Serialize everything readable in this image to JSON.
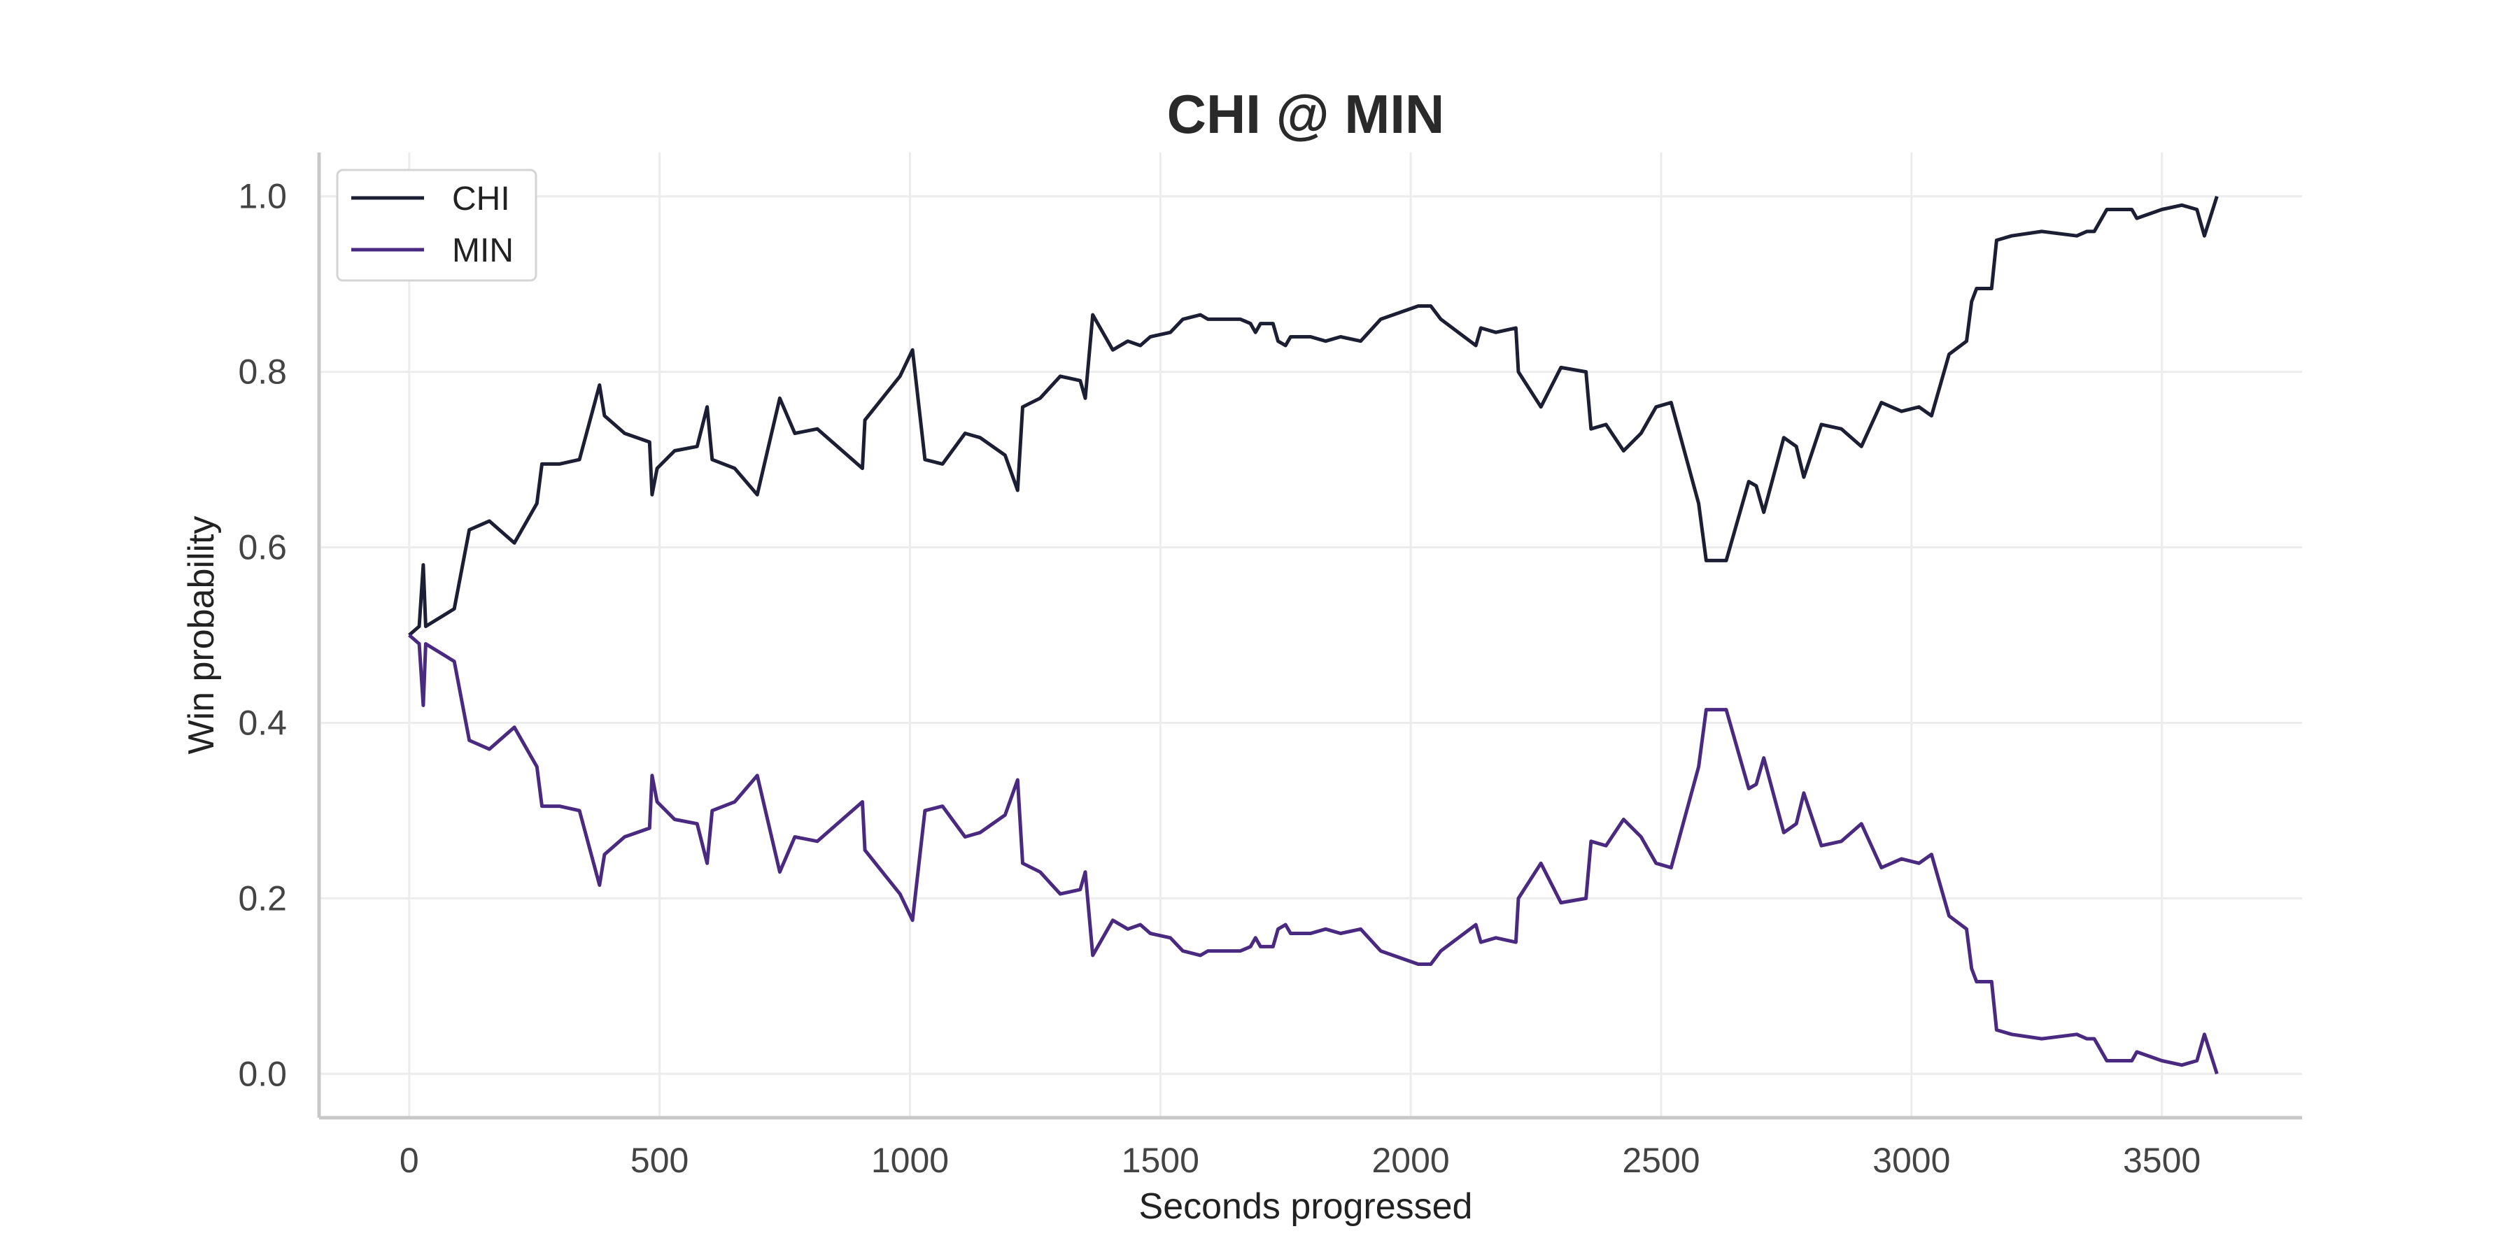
{
  "chart_data": {
    "type": "line",
    "title": "CHI @ MIN",
    "xlabel": "Seconds progressed",
    "ylabel": "Win probability",
    "xlim": [
      -180,
      3780
    ],
    "ylim": [
      -0.05,
      1.05
    ],
    "xticks": [
      0,
      500,
      1000,
      1500,
      2000,
      2500,
      3000,
      3500
    ],
    "xtick_labels": [
      "0",
      "500",
      "1000",
      "1500",
      "2000",
      "2500",
      "3000",
      "3500"
    ],
    "yticks": [
      0.0,
      0.2,
      0.4,
      0.6,
      0.8,
      1.0
    ],
    "ytick_labels": [
      "0.0",
      "0.2",
      "0.4",
      "0.6",
      "0.8",
      "1.0"
    ],
    "grid": true,
    "legend": "top-left",
    "series": [
      {
        "name": "CHI",
        "color": "#1c1f33",
        "points": [
          [
            0,
            0.5
          ],
          [
            20,
            0.51
          ],
          [
            28,
            0.58
          ],
          [
            33,
            0.51
          ],
          [
            90,
            0.53
          ],
          [
            120,
            0.62
          ],
          [
            160,
            0.63
          ],
          [
            210,
            0.605
          ],
          [
            255,
            0.65
          ],
          [
            265,
            0.695
          ],
          [
            300,
            0.695
          ],
          [
            340,
            0.7
          ],
          [
            380,
            0.785
          ],
          [
            390,
            0.75
          ],
          [
            430,
            0.73
          ],
          [
            480,
            0.72
          ],
          [
            485,
            0.66
          ],
          [
            495,
            0.69
          ],
          [
            530,
            0.71
          ],
          [
            575,
            0.715
          ],
          [
            595,
            0.76
          ],
          [
            605,
            0.7
          ],
          [
            650,
            0.69
          ],
          [
            695,
            0.66
          ],
          [
            740,
            0.77
          ],
          [
            770,
            0.73
          ],
          [
            815,
            0.735
          ],
          [
            905,
            0.69
          ],
          [
            910,
            0.745
          ],
          [
            980,
            0.795
          ],
          [
            1005,
            0.825
          ],
          [
            1030,
            0.7
          ],
          [
            1065,
            0.695
          ],
          [
            1110,
            0.73
          ],
          [
            1140,
            0.725
          ],
          [
            1190,
            0.705
          ],
          [
            1215,
            0.665
          ],
          [
            1225,
            0.76
          ],
          [
            1260,
            0.77
          ],
          [
            1300,
            0.795
          ],
          [
            1340,
            0.79
          ],
          [
            1350,
            0.77
          ],
          [
            1365,
            0.865
          ],
          [
            1405,
            0.825
          ],
          [
            1435,
            0.835
          ],
          [
            1460,
            0.83
          ],
          [
            1480,
            0.84
          ],
          [
            1520,
            0.845
          ],
          [
            1545,
            0.86
          ],
          [
            1580,
            0.865
          ],
          [
            1595,
            0.86
          ],
          [
            1660,
            0.86
          ],
          [
            1680,
            0.855
          ],
          [
            1690,
            0.845
          ],
          [
            1700,
            0.855
          ],
          [
            1725,
            0.855
          ],
          [
            1735,
            0.835
          ],
          [
            1750,
            0.83
          ],
          [
            1760,
            0.84
          ],
          [
            1800,
            0.84
          ],
          [
            1830,
            0.835
          ],
          [
            1860,
            0.84
          ],
          [
            1900,
            0.835
          ],
          [
            1940,
            0.86
          ],
          [
            2015,
            0.875
          ],
          [
            2040,
            0.875
          ],
          [
            2060,
            0.86
          ],
          [
            2130,
            0.83
          ],
          [
            2140,
            0.85
          ],
          [
            2170,
            0.845
          ],
          [
            2210,
            0.85
          ],
          [
            2215,
            0.8
          ],
          [
            2260,
            0.76
          ],
          [
            2300,
            0.805
          ],
          [
            2350,
            0.8
          ],
          [
            2360,
            0.735
          ],
          [
            2390,
            0.74
          ],
          [
            2425,
            0.71
          ],
          [
            2460,
            0.73
          ],
          [
            2490,
            0.76
          ],
          [
            2520,
            0.765
          ],
          [
            2575,
            0.65
          ],
          [
            2590,
            0.585
          ],
          [
            2630,
            0.585
          ],
          [
            2675,
            0.675
          ],
          [
            2690,
            0.67
          ],
          [
            2705,
            0.64
          ],
          [
            2745,
            0.725
          ],
          [
            2770,
            0.715
          ],
          [
            2785,
            0.68
          ],
          [
            2820,
            0.74
          ],
          [
            2860,
            0.735
          ],
          [
            2900,
            0.715
          ],
          [
            2940,
            0.765
          ],
          [
            2980,
            0.755
          ],
          [
            3015,
            0.76
          ],
          [
            3040,
            0.75
          ],
          [
            3075,
            0.82
          ],
          [
            3110,
            0.835
          ],
          [
            3120,
            0.88
          ],
          [
            3130,
            0.895
          ],
          [
            3160,
            0.895
          ],
          [
            3170,
            0.95
          ],
          [
            3200,
            0.955
          ],
          [
            3260,
            0.96
          ],
          [
            3330,
            0.955
          ],
          [
            3350,
            0.96
          ],
          [
            3365,
            0.96
          ],
          [
            3380,
            0.975
          ],
          [
            3390,
            0.985
          ],
          [
            3440,
            0.985
          ],
          [
            3450,
            0.975
          ],
          [
            3500,
            0.985
          ],
          [
            3540,
            0.99
          ],
          [
            3570,
            0.985
          ],
          [
            3585,
            0.955
          ],
          [
            3610,
            1.0
          ]
        ]
      },
      {
        "name": "MIN",
        "color": "#4a2a80",
        "points": [
          [
            0,
            0.5
          ],
          [
            20,
            0.49
          ],
          [
            28,
            0.42
          ],
          [
            33,
            0.49
          ],
          [
            90,
            0.47
          ],
          [
            120,
            0.38
          ],
          [
            160,
            0.37
          ],
          [
            210,
            0.395
          ],
          [
            255,
            0.35
          ],
          [
            265,
            0.305
          ],
          [
            300,
            0.305
          ],
          [
            340,
            0.3
          ],
          [
            380,
            0.215
          ],
          [
            390,
            0.25
          ],
          [
            430,
            0.27
          ],
          [
            480,
            0.28
          ],
          [
            485,
            0.34
          ],
          [
            495,
            0.31
          ],
          [
            530,
            0.29
          ],
          [
            575,
            0.285
          ],
          [
            595,
            0.24
          ],
          [
            605,
            0.3
          ],
          [
            650,
            0.31
          ],
          [
            695,
            0.34
          ],
          [
            740,
            0.23
          ],
          [
            770,
            0.27
          ],
          [
            815,
            0.265
          ],
          [
            905,
            0.31
          ],
          [
            910,
            0.255
          ],
          [
            980,
            0.205
          ],
          [
            1005,
            0.175
          ],
          [
            1030,
            0.3
          ],
          [
            1065,
            0.305
          ],
          [
            1110,
            0.27
          ],
          [
            1140,
            0.275
          ],
          [
            1190,
            0.295
          ],
          [
            1215,
            0.335
          ],
          [
            1225,
            0.24
          ],
          [
            1260,
            0.23
          ],
          [
            1300,
            0.205
          ],
          [
            1340,
            0.21
          ],
          [
            1350,
            0.23
          ],
          [
            1365,
            0.135
          ],
          [
            1405,
            0.175
          ],
          [
            1435,
            0.165
          ],
          [
            1460,
            0.17
          ],
          [
            1480,
            0.16
          ],
          [
            1520,
            0.155
          ],
          [
            1545,
            0.14
          ],
          [
            1580,
            0.135
          ],
          [
            1595,
            0.14
          ],
          [
            1660,
            0.14
          ],
          [
            1680,
            0.145
          ],
          [
            1690,
            0.155
          ],
          [
            1700,
            0.145
          ],
          [
            1725,
            0.145
          ],
          [
            1735,
            0.165
          ],
          [
            1750,
            0.17
          ],
          [
            1760,
            0.16
          ],
          [
            1800,
            0.16
          ],
          [
            1830,
            0.165
          ],
          [
            1860,
            0.16
          ],
          [
            1900,
            0.165
          ],
          [
            1940,
            0.14
          ],
          [
            2015,
            0.125
          ],
          [
            2040,
            0.125
          ],
          [
            2060,
            0.14
          ],
          [
            2130,
            0.17
          ],
          [
            2140,
            0.15
          ],
          [
            2170,
            0.155
          ],
          [
            2210,
            0.15
          ],
          [
            2215,
            0.2
          ],
          [
            2260,
            0.24
          ],
          [
            2300,
            0.195
          ],
          [
            2350,
            0.2
          ],
          [
            2360,
            0.265
          ],
          [
            2390,
            0.26
          ],
          [
            2425,
            0.29
          ],
          [
            2460,
            0.27
          ],
          [
            2490,
            0.24
          ],
          [
            2520,
            0.235
          ],
          [
            2575,
            0.35
          ],
          [
            2590,
            0.415
          ],
          [
            2630,
            0.415
          ],
          [
            2675,
            0.325
          ],
          [
            2690,
            0.33
          ],
          [
            2705,
            0.36
          ],
          [
            2745,
            0.275
          ],
          [
            2770,
            0.285
          ],
          [
            2785,
            0.32
          ],
          [
            2820,
            0.26
          ],
          [
            2860,
            0.265
          ],
          [
            2900,
            0.285
          ],
          [
            2940,
            0.235
          ],
          [
            2980,
            0.245
          ],
          [
            3015,
            0.24
          ],
          [
            3040,
            0.25
          ],
          [
            3075,
            0.18
          ],
          [
            3110,
            0.165
          ],
          [
            3120,
            0.12
          ],
          [
            3130,
            0.105
          ],
          [
            3160,
            0.105
          ],
          [
            3170,
            0.05
          ],
          [
            3200,
            0.045
          ],
          [
            3260,
            0.04
          ],
          [
            3330,
            0.045
          ],
          [
            3350,
            0.04
          ],
          [
            3365,
            0.04
          ],
          [
            3380,
            0.025
          ],
          [
            3390,
            0.015
          ],
          [
            3440,
            0.015
          ],
          [
            3450,
            0.025
          ],
          [
            3500,
            0.015
          ],
          [
            3540,
            0.01
          ],
          [
            3570,
            0.015
          ],
          [
            3585,
            0.045
          ],
          [
            3610,
            0.0
          ]
        ]
      }
    ]
  }
}
